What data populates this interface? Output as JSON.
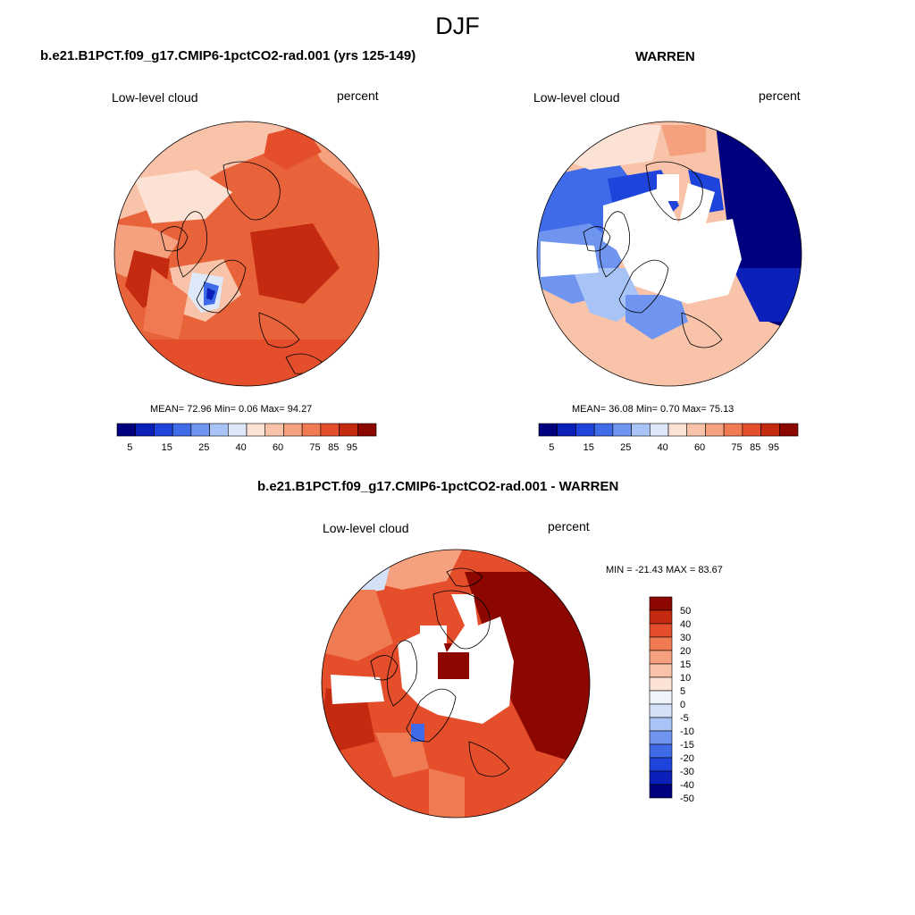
{
  "figure_title": "DJF",
  "panels": [
    {
      "title": "b.e21.B1PCT.f09_g17.CMIP6-1pctCO2-rad.001 (yrs 125-149)",
      "left_label": "Low-level cloud",
      "right_label": "percent",
      "stats": "MEAN=  72.96  Min=   0.06  Max=  94.27",
      "scalebar_labels": [
        "5",
        "15",
        "25",
        "40",
        "60",
        "75",
        "85",
        "95"
      ]
    },
    {
      "title": "WARREN",
      "left_label": "Low-level cloud",
      "right_label": "percent",
      "stats": "MEAN=  36.08  Min=   0.70  Max=  75.13",
      "scalebar_labels": [
        "5",
        "15",
        "25",
        "40",
        "60",
        "75",
        "85",
        "95"
      ]
    },
    {
      "title": "b.e21.B1PCT.f09_g17.CMIP6-1pctCO2-rad.001 - WARREN",
      "left_label": "Low-level cloud",
      "right_label": "percent",
      "stats": "MIN = -21.43 MAX =  83.67",
      "scalebar_labels": [
        "50",
        "40",
        "30",
        "20",
        "15",
        "10",
        "5",
        "0",
        "-5",
        "-10",
        "-15",
        "-20",
        "-30",
        "-40",
        "-50"
      ]
    }
  ],
  "colors": {
    "seq": [
      "#00007f",
      "#0a20b8",
      "#1f44dc",
      "#3f6ae8",
      "#6f95f0",
      "#a8c3f5",
      "#dde8f8",
      "#fbe2d4",
      "#f8c3a8",
      "#f5a07e",
      "#f07a52",
      "#e44e2a",
      "#c42a10",
      "#8c0700"
    ],
    "diff": [
      "#00007f",
      "#0a20b8",
      "#1f44dc",
      "#3f6ae8",
      "#6f95f0",
      "#a8c3f5",
      "#d4e2f7",
      "#f0f4fb",
      "#fbe2d4",
      "#f8c3a8",
      "#f5a07e",
      "#f07a52",
      "#e44e2a",
      "#c42a10",
      "#8c0700"
    ]
  }
}
